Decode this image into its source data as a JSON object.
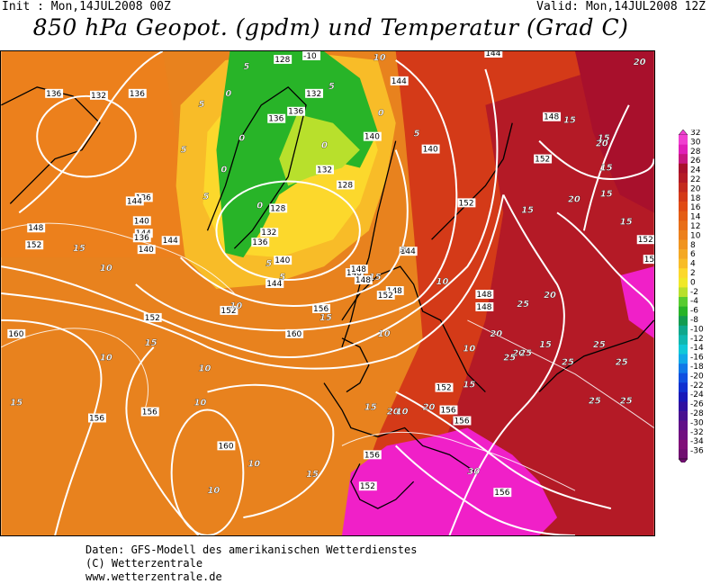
{
  "header": {
    "init": "Init : Mon,14JUL2008 00Z",
    "valid": "Valid: Mon,14JUL2008 12Z",
    "title": "850 hPa Geopot. (gpdm) und Temperatur (Grad C)"
  },
  "colors": {
    "land_outline": "#000000",
    "isohypse": "#ffffff",
    "warm_orange": "#e8821e",
    "deep_red": "#b01820",
    "magenta": "#f020c8",
    "green": "#28b428",
    "yellow": "#f8e020"
  },
  "legend": {
    "labels": [
      "32",
      "30",
      "28",
      "26",
      "24",
      "22",
      "20",
      "18",
      "16",
      "14",
      "12",
      "10",
      "8",
      "6",
      "4",
      "2",
      "0",
      "-2",
      "-4",
      "-6",
      "-8",
      "-10",
      "-12",
      "-14",
      "-16",
      "-18",
      "-20",
      "-22",
      "-24",
      "-26",
      "-28",
      "-30",
      "-32",
      "-34",
      "-36"
    ],
    "colors": [
      "#f040d0",
      "#e020b8",
      "#c81880",
      "#a8102c",
      "#b41a26",
      "#c42a1e",
      "#d43a18",
      "#e04a14",
      "#e45c14",
      "#e86e18",
      "#ec801c",
      "#f09420",
      "#f4a824",
      "#f8bc28",
      "#fcd82c",
      "#f0e828",
      "#b8e02c",
      "#58cc30",
      "#28b428",
      "#149c50",
      "#10a88c",
      "#10b8b0",
      "#10c8d8",
      "#10a8e8",
      "#1078e8",
      "#1050e0",
      "#1030d0",
      "#1818b8",
      "#3010a0",
      "#481090",
      "#601088",
      "#701080",
      "#801078",
      "#701070"
    ]
  },
  "isohypse_labels": [
    {
      "t": "128"
    },
    {
      "t": "132"
    },
    {
      "t": "136"
    },
    {
      "t": "136"
    },
    {
      "t": "132"
    },
    {
      "t": "136"
    },
    {
      "t": "136"
    },
    {
      "t": "140"
    },
    {
      "t": "132"
    },
    {
      "t": "128"
    },
    {
      "t": "128"
    },
    {
      "t": "132"
    },
    {
      "t": "136"
    },
    {
      "t": "140"
    },
    {
      "t": "144"
    },
    {
      "t": "144"
    },
    {
      "t": "140"
    },
    {
      "t": "136"
    },
    {
      "t": "148"
    },
    {
      "t": "152"
    },
    {
      "t": "136"
    },
    {
      "t": "140"
    },
    {
      "t": "144"
    },
    {
      "t": "148"
    },
    {
      "t": "148"
    },
    {
      "t": "152"
    },
    {
      "t": "144"
    },
    {
      "t": "144"
    },
    {
      "t": "144"
    },
    {
      "t": "140"
    },
    {
      "t": "148"
    },
    {
      "t": "152"
    },
    {
      "t": "156"
    },
    {
      "t": "152"
    },
    {
      "t": "160"
    },
    {
      "t": "152"
    },
    {
      "t": "156"
    },
    {
      "t": "160"
    },
    {
      "t": "156"
    },
    {
      "t": "152"
    },
    {
      "t": "156"
    },
    {
      "t": "156"
    },
    {
      "t": "152"
    },
    {
      "t": "156"
    },
    {
      "t": "148"
    },
    {
      "t": "148"
    },
    {
      "t": "152"
    },
    {
      "t": "152"
    },
    {
      "t": "156"
    },
    {
      "t": "152"
    },
    {
      "t": "148"
    },
    {
      "t": "148"
    },
    {
      "t": "144"
    },
    {
      "t": "144"
    },
    {
      "t": "160"
    },
    {
      "t": "-10"
    }
  ],
  "temperature_labels": [
    {
      "t": "5"
    },
    {
      "t": "0"
    },
    {
      "t": "5"
    },
    {
      "t": "0"
    },
    {
      "t": "0"
    },
    {
      "t": "5"
    },
    {
      "t": "0"
    },
    {
      "t": "5"
    },
    {
      "t": "5"
    },
    {
      "t": "5"
    },
    {
      "t": "0"
    },
    {
      "t": "0"
    },
    {
      "t": "5"
    },
    {
      "t": "10"
    },
    {
      "t": "15"
    },
    {
      "t": "10"
    },
    {
      "t": "10"
    },
    {
      "t": "15"
    },
    {
      "t": "10"
    },
    {
      "t": "10"
    },
    {
      "t": "15"
    },
    {
      "t": "10"
    },
    {
      "t": "10"
    },
    {
      "t": "15"
    },
    {
      "t": "15"
    },
    {
      "t": "15"
    },
    {
      "t": "15"
    },
    {
      "t": "20"
    },
    {
      "t": "20"
    },
    {
      "t": "20"
    },
    {
      "t": "20"
    },
    {
      "t": "15"
    },
    {
      "t": "15"
    },
    {
      "t": "15"
    },
    {
      "t": "15"
    },
    {
      "t": "15"
    },
    {
      "t": "20"
    },
    {
      "t": "20"
    },
    {
      "t": "25"
    },
    {
      "t": "25"
    },
    {
      "t": "25"
    },
    {
      "t": "25"
    },
    {
      "t": "25"
    },
    {
      "t": "25"
    },
    {
      "t": "30"
    },
    {
      "t": "25"
    },
    {
      "t": "25"
    },
    {
      "t": "20"
    },
    {
      "t": "15"
    },
    {
      "t": "10"
    },
    {
      "t": "15"
    },
    {
      "t": "10"
    },
    {
      "t": "10"
    },
    {
      "t": "5"
    },
    {
      "t": "10"
    },
    {
      "t": "15"
    },
    {
      "t": "20"
    },
    {
      "t": "5"
    },
    {
      "t": "10"
    }
  ],
  "footer": {
    "line1": "Daten: GFS-Modell des amerikanischen Wetterdienstes",
    "line2": "(C) Wetterzentrale",
    "line3": "www.wetterzentrale.de"
  }
}
